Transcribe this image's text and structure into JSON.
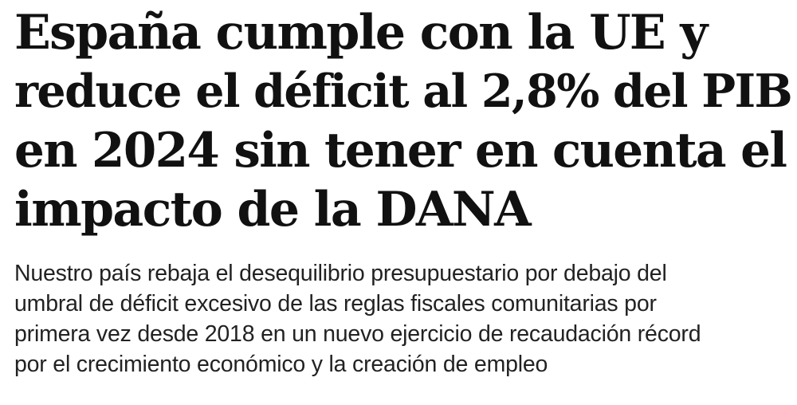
{
  "headline": {
    "lines": [
      "España cumple con la UE y",
      "reduce el déficit al 2,8% del PIB",
      "en 2024 sin tener en cuenta el",
      "impacto de la DANA"
    ]
  },
  "subheadline": {
    "lines": [
      "Nuestro país rebaja el desequilibrio presupuestario por debajo del",
      "umbral de déficit excesivo de las reglas fiscales comunitarias por",
      "primera vez desde 2018 en un nuevo ejercicio de recaudación récord",
      "por el crecimiento económico y la creación de empleo"
    ]
  }
}
